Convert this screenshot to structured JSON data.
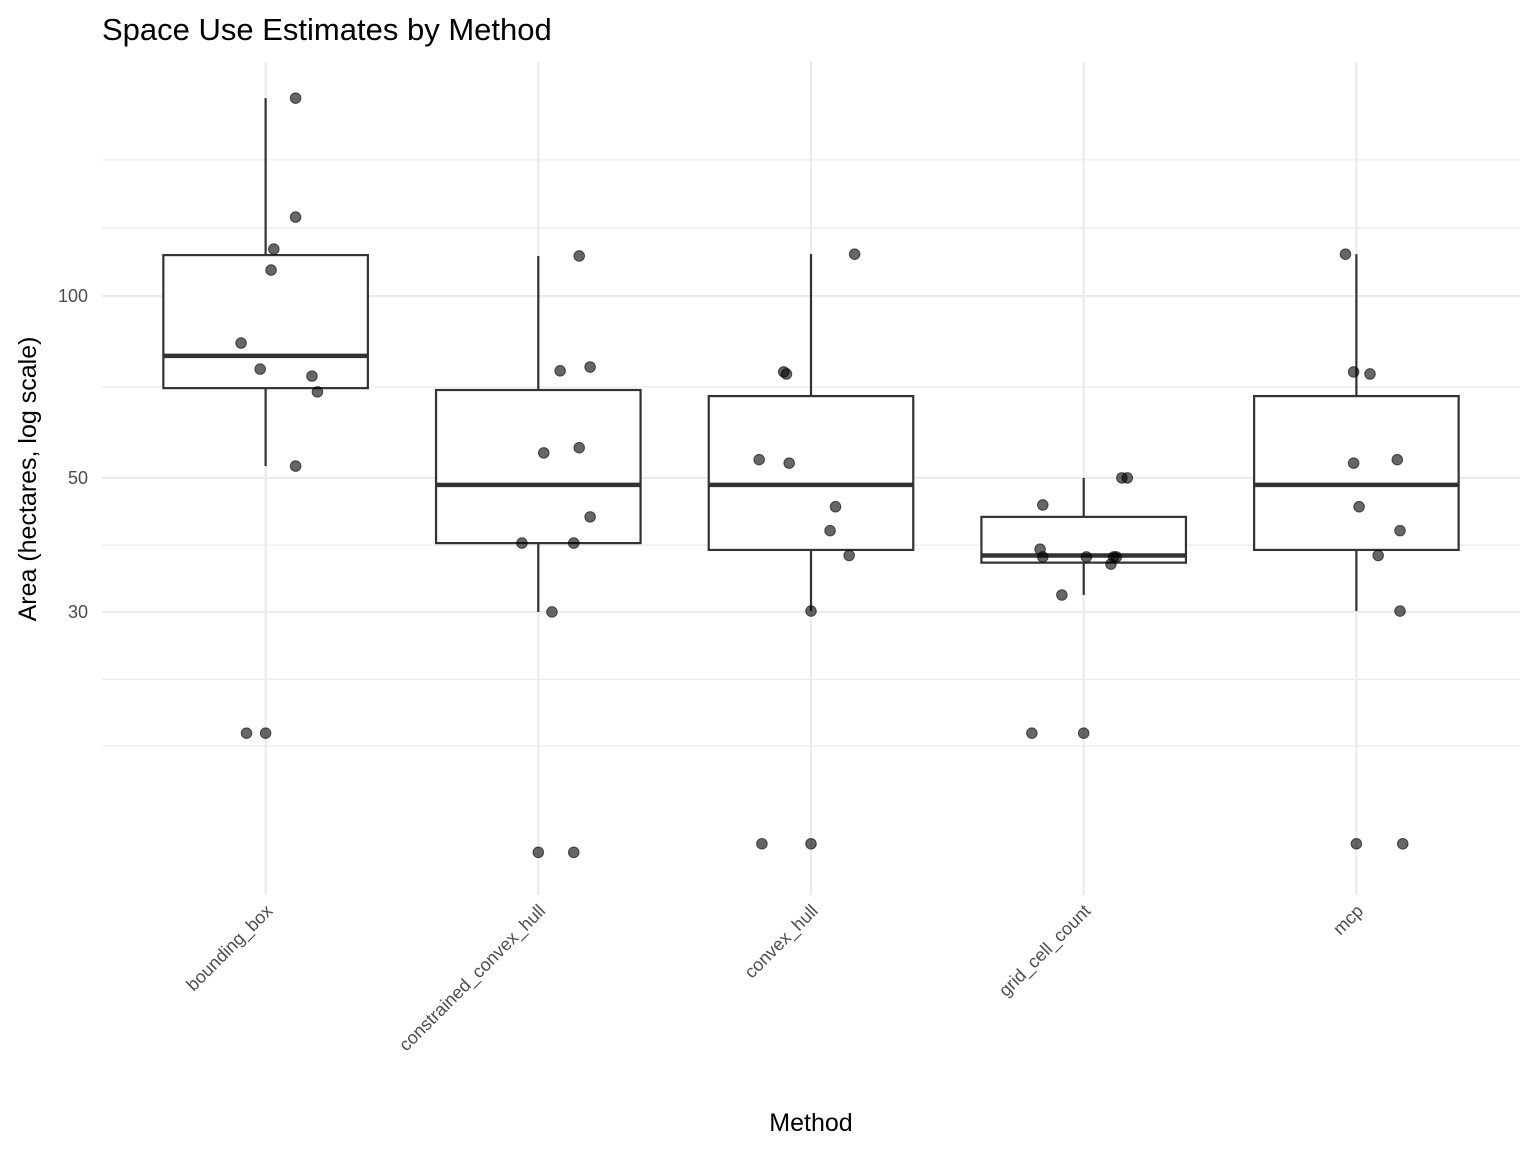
{
  "chart_data": {
    "type": "boxplot",
    "title": "Space Use Estimates by Method",
    "xlabel": "Method",
    "ylabel": "Area (hectares, log scale)",
    "yscale": "log10",
    "ylim": [
      10.2,
      244
    ],
    "y_ticks": [
      30,
      50,
      100
    ],
    "y_tick_labels": [
      "30",
      "50",
      "100"
    ],
    "y_minor_grid": [
      18.0,
      23.2,
      38.7,
      70.7,
      129.6,
      168
    ],
    "grid": true,
    "categories": [
      "bounding_box",
      "constrained_convex_hull",
      "convex_hull",
      "grid_cell_count",
      "mcp"
    ],
    "boxes": [
      {
        "category": "bounding_box",
        "whisker_low": 52.3,
        "q1": 70.4,
        "median": 79.6,
        "q3": 116.9,
        "whisker_high": 212.6
      },
      {
        "category": "constrained_convex_hull",
        "whisker_low": 30.0,
        "q1": 39.0,
        "median": 48.7,
        "q3": 69.9,
        "whisker_high": 116.5
      },
      {
        "category": "convex_hull",
        "whisker_low": 30.1,
        "q1": 38.0,
        "median": 48.7,
        "q3": 68.3,
        "whisker_high": 117.3
      },
      {
        "category": "grid_cell_count",
        "whisker_low": 32.0,
        "q1": 36.2,
        "median": 37.2,
        "q3": 43.1,
        "whisker_high": 50.0
      },
      {
        "category": "mcp",
        "whisker_low": 30.1,
        "q1": 38.0,
        "median": 48.7,
        "q3": 68.3,
        "whisker_high": 117.3
      }
    ],
    "points": [
      {
        "category": "bounding_box",
        "jitter": [
          0.11,
          0.11,
          0.03,
          0.02,
          -0.09,
          -0.02,
          0.17,
          0.19,
          0.11,
          -0.07,
          0.0
        ],
        "values": [
          212.6,
          135.1,
          119.6,
          110.4,
          83.6,
          75.7,
          73.7,
          69.4,
          52.3,
          18.9,
          18.9
        ]
      },
      {
        "category": "constrained_convex_hull",
        "jitter": [
          0.15,
          0.08,
          0.19,
          0.15,
          0.02,
          0.19,
          -0.06,
          0.13,
          0.05,
          0.0,
          0.13
        ],
        "values": [
          116.5,
          75.2,
          76.3,
          56.1,
          55.0,
          43.1,
          39.0,
          39.0,
          30.0,
          12.0,
          12.0
        ]
      },
      {
        "category": "convex_hull",
        "jitter": [
          0.16,
          -0.1,
          -0.09,
          -0.19,
          -0.08,
          0.09,
          0.07,
          0.14,
          0.0,
          -0.18,
          0.0
        ],
        "values": [
          117.3,
          74.9,
          74.3,
          53.6,
          52.9,
          44.8,
          40.9,
          37.2,
          30.1,
          12.4,
          12.4
        ]
      },
      {
        "category": "grid_cell_count",
        "jitter": [
          0.14,
          0.16,
          -0.15,
          -0.16,
          -0.15,
          0.01,
          0.11,
          0.12,
          0.1,
          -0.08,
          -0.19,
          0.0
        ],
        "values": [
          50.0,
          50.0,
          45.1,
          38.1,
          37.0,
          37.0,
          37.0,
          37.0,
          36.0,
          32.0,
          18.9,
          18.9
        ]
      },
      {
        "category": "mcp",
        "jitter": [
          -0.04,
          -0.01,
          0.05,
          -0.01,
          0.15,
          0.01,
          0.16,
          0.08,
          0.16,
          0.0,
          0.17
        ],
        "values": [
          117.3,
          74.9,
          74.3,
          52.9,
          53.6,
          44.8,
          40.9,
          37.2,
          30.1,
          12.4,
          12.4
        ]
      }
    ],
    "colors": {
      "box": "#333333",
      "point": "#000000",
      "grid": "#ebebeb",
      "tick_text": "#4d4d4d"
    }
  }
}
